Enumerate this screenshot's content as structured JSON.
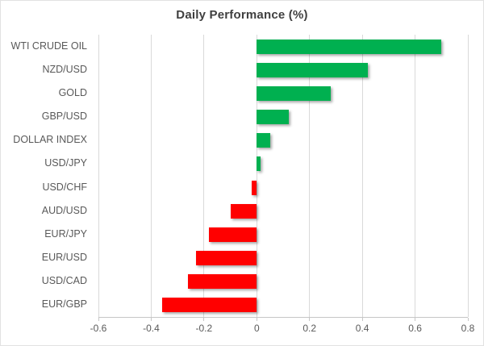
{
  "title": "Daily Performance (%)",
  "colors": {
    "positive_bar": "#00B050",
    "negative_bar": "#FF0000",
    "gridline": "#D9D9D9",
    "axis_line": "#C6C6C6",
    "tick_text": "#595959",
    "category_text": "#595959",
    "title_text": "#3F3F3F",
    "background": "#FFFFFF"
  },
  "chart_data": {
    "type": "bar",
    "orientation": "horizontal",
    "title": "Daily Performance (%)",
    "categories": [
      "WTI CRUDE OIL",
      "NZD/USD",
      "GOLD",
      "GBP/USD",
      "DOLLAR INDEX",
      "USD/JPY",
      "USD/CHF",
      "AUD/USD",
      "EUR/JPY",
      "EUR/USD",
      "USD/CAD",
      "EUR/GBP"
    ],
    "values": [
      0.7,
      0.42,
      0.28,
      0.12,
      0.05,
      0.015,
      -0.02,
      -0.1,
      -0.18,
      -0.23,
      -0.26,
      -0.36
    ],
    "xlim": [
      -0.6,
      0.8
    ],
    "xticks": [
      -0.6,
      -0.4,
      -0.2,
      0,
      0.2,
      0.4,
      0.6,
      0.8
    ],
    "xtick_labels": [
      "-0.6",
      "-0.4",
      "-0.2",
      "0",
      "0.2",
      "0.4",
      "0.6",
      "0.8"
    ],
    "grid": true,
    "legend": false,
    "value_axis_position": "bottom",
    "category_axis_position": "left"
  }
}
